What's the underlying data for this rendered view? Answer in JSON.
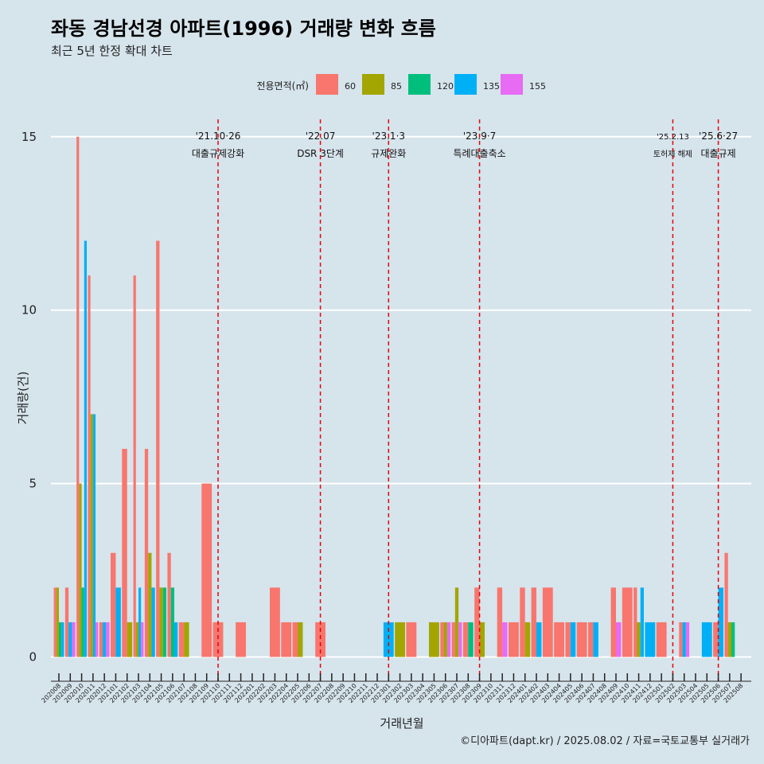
{
  "chart_data": {
    "type": "bar",
    "title": "좌동 경남선경 아파트(1996) 거래량 변화 흐름",
    "subtitle": "최근 5년 한정 확대 차트",
    "xlabel": "거래년월",
    "ylabel": "거래량(건)",
    "ylim": [
      -0.7,
      15.5
    ],
    "yticks": [
      0,
      5,
      10,
      15
    ],
    "legend": {
      "title": "전용면적(㎡)",
      "placement": "top",
      "entries": [
        {
          "name": "60",
          "color": "#f8766d"
        },
        {
          "name": "85",
          "color": "#a3a500"
        },
        {
          "name": "120",
          "color": "#00bf7d"
        },
        {
          "name": "135",
          "color": "#00b0f6"
        },
        {
          "name": "155",
          "color": "#e76bf3"
        }
      ]
    },
    "categories": [
      "202008",
      "202009",
      "202010",
      "202011",
      "202012",
      "202101",
      "202102",
      "202103",
      "202104",
      "202105",
      "202106",
      "202107",
      "202108",
      "202109",
      "202110",
      "202111",
      "202112",
      "202201",
      "202202",
      "202203",
      "202204",
      "202205",
      "202206",
      "202207",
      "202208",
      "202209",
      "202210",
      "202211",
      "202212",
      "202301",
      "202302",
      "202303",
      "202304",
      "202305",
      "202306",
      "202307",
      "202308",
      "202309",
      "202310",
      "202311",
      "202312",
      "202401",
      "202402",
      "202403",
      "202404",
      "202405",
      "202406",
      "202407",
      "202408",
      "202409",
      "202410",
      "202411",
      "202412",
      "202501",
      "202502",
      "202503",
      "202504",
      "202505",
      "202506",
      "202507",
      "202508"
    ],
    "bars": [
      {
        "month": "202008",
        "values": [
          2,
          2,
          1,
          1,
          0
        ]
      },
      {
        "month": "202009",
        "values": [
          2,
          0,
          0,
          1,
          1
        ]
      },
      {
        "month": "202010",
        "values": [
          15,
          5,
          2,
          12,
          0
        ]
      },
      {
        "month": "202011",
        "values": [
          11,
          7,
          0,
          7,
          1
        ]
      },
      {
        "month": "202012",
        "values": [
          1,
          0,
          0,
          1,
          1
        ]
      },
      {
        "month": "202101",
        "values": [
          3,
          0,
          0,
          2,
          0
        ]
      },
      {
        "month": "202102",
        "values": [
          6,
          1,
          0,
          0,
          0
        ]
      },
      {
        "month": "202103",
        "values": [
          11,
          1,
          0,
          2,
          1
        ]
      },
      {
        "month": "202104",
        "values": [
          6,
          3,
          0,
          2,
          0
        ]
      },
      {
        "month": "202105",
        "values": [
          12,
          2,
          2,
          0,
          0
        ]
      },
      {
        "month": "202106",
        "values": [
          3,
          0,
          2,
          1,
          0
        ]
      },
      {
        "month": "202107",
        "values": [
          1,
          1,
          0,
          0,
          0
        ]
      },
      {
        "month": "202109",
        "values": [
          5,
          0,
          0,
          0,
          0
        ]
      },
      {
        "month": "202110",
        "values": [
          1,
          0,
          0,
          0,
          0
        ]
      },
      {
        "month": "202112",
        "values": [
          1,
          0,
          0,
          0,
          0
        ]
      },
      {
        "month": "202203",
        "values": [
          2,
          0,
          0,
          0,
          0
        ]
      },
      {
        "month": "202204",
        "values": [
          1,
          0,
          0,
          0,
          0
        ]
      },
      {
        "month": "202205",
        "values": [
          1,
          1,
          0,
          0,
          0
        ]
      },
      {
        "month": "202207",
        "values": [
          1,
          0,
          0,
          0,
          0
        ]
      },
      {
        "month": "202301",
        "values": [
          0,
          0,
          0,
          1,
          0
        ]
      },
      {
        "month": "202302",
        "values": [
          0,
          1,
          0,
          0,
          0
        ]
      },
      {
        "month": "202303",
        "values": [
          1,
          0,
          0,
          0,
          0
        ]
      },
      {
        "month": "202305",
        "values": [
          0,
          1,
          0,
          0,
          0
        ]
      },
      {
        "month": "202306",
        "values": [
          1,
          1,
          0,
          0,
          1
        ]
      },
      {
        "month": "202307",
        "values": [
          1,
          2,
          0,
          0,
          1
        ]
      },
      {
        "month": "202308",
        "values": [
          1,
          0,
          1,
          0,
          0
        ]
      },
      {
        "month": "202309",
        "values": [
          2,
          1,
          0,
          0,
          0
        ]
      },
      {
        "month": "202311",
        "values": [
          2,
          0,
          0,
          0,
          1
        ]
      },
      {
        "month": "202312",
        "values": [
          1,
          0,
          0,
          0,
          0
        ]
      },
      {
        "month": "202401",
        "values": [
          2,
          1,
          0,
          0,
          0
        ]
      },
      {
        "month": "202402",
        "values": [
          2,
          0,
          0,
          1,
          0
        ]
      },
      {
        "month": "202403",
        "values": [
          2,
          0,
          0,
          0,
          0
        ]
      },
      {
        "month": "202404",
        "values": [
          1,
          0,
          0,
          0,
          0
        ]
      },
      {
        "month": "202405",
        "values": [
          1,
          0,
          0,
          1,
          0
        ]
      },
      {
        "month": "202406",
        "values": [
          1,
          0,
          0,
          0,
          0
        ]
      },
      {
        "month": "202407",
        "values": [
          1,
          0,
          0,
          1,
          0
        ]
      },
      {
        "month": "202409",
        "values": [
          2,
          0,
          0,
          0,
          1
        ]
      },
      {
        "month": "202410",
        "values": [
          2,
          0,
          0,
          0,
          0
        ]
      },
      {
        "month": "202411",
        "values": [
          2,
          1,
          0,
          2,
          0
        ]
      },
      {
        "month": "202412",
        "values": [
          0,
          0,
          0,
          1,
          0
        ]
      },
      {
        "month": "202501",
        "values": [
          1,
          0,
          0,
          0,
          0
        ]
      },
      {
        "month": "202503",
        "values": [
          1,
          0,
          0,
          1,
          1
        ]
      },
      {
        "month": "202505",
        "values": [
          0,
          0,
          0,
          1,
          0
        ]
      },
      {
        "month": "202506",
        "values": [
          1,
          0,
          0,
          2,
          0
        ]
      },
      {
        "month": "202507",
        "values": [
          3,
          1,
          1,
          0,
          0
        ]
      }
    ],
    "events": [
      {
        "month": "202110",
        "label1": "'21.10·26",
        "label2": "대출규제강화",
        "size": "normal"
      },
      {
        "month": "202207",
        "label1": "'22.07",
        "label2": "DSR 3단계",
        "size": "normal"
      },
      {
        "month": "202301",
        "label1": "'23.1·3",
        "label2": "규제완화",
        "size": "normal"
      },
      {
        "month": "202309",
        "label1": "'23.9·7",
        "label2": "특례대출축소",
        "size": "normal"
      },
      {
        "month": "202502",
        "label1": "'25.2.13",
        "label2": "토허제 해제",
        "size": "small"
      },
      {
        "month": "202506",
        "label1": "'25.6·27",
        "label2": "대출규제",
        "size": "normal"
      }
    ],
    "caption": "©디아파트(dapt.kr) / 2025.08.02 / 자료=국토교통부 실거래가"
  }
}
